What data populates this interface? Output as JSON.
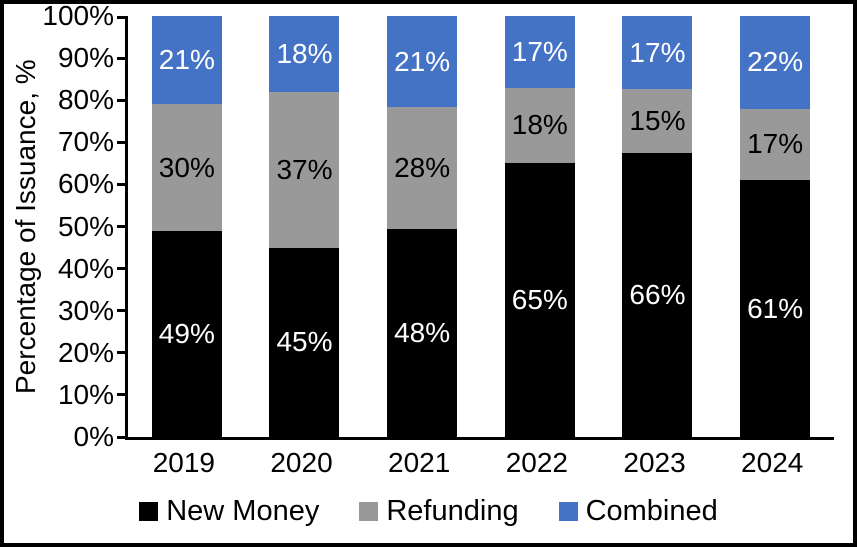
{
  "chart_data": {
    "type": "bar",
    "stacked": true,
    "stack_unit": "percent",
    "ylabel": "Percentage of Issuance, %",
    "xlabel": "",
    "categories": [
      "2019",
      "2020",
      "2021",
      "2022",
      "2023",
      "2024"
    ],
    "series": [
      {
        "name": "New Money",
        "color": "#000000",
        "label_color": "#ffffff",
        "values": [
          49,
          45,
          48,
          65,
          66,
          61
        ]
      },
      {
        "name": "Refunding",
        "color": "#999999",
        "label_color": "#000000",
        "values": [
          30,
          37,
          28,
          18,
          15,
          17
        ]
      },
      {
        "name": "Combined",
        "color": "#4472C4",
        "label_color": "#ffffff",
        "values": [
          21,
          18,
          21,
          17,
          17,
          22
        ]
      }
    ],
    "y_ticks": [
      "0%",
      "10%",
      "20%",
      "30%",
      "40%",
      "50%",
      "60%",
      "70%",
      "80%",
      "90%",
      "100%"
    ],
    "ylim": [
      0,
      100
    ],
    "value_suffix": "%",
    "grid": false,
    "legend_position": "bottom",
    "axis_color": "#000000",
    "background_color": "#ffffff"
  }
}
